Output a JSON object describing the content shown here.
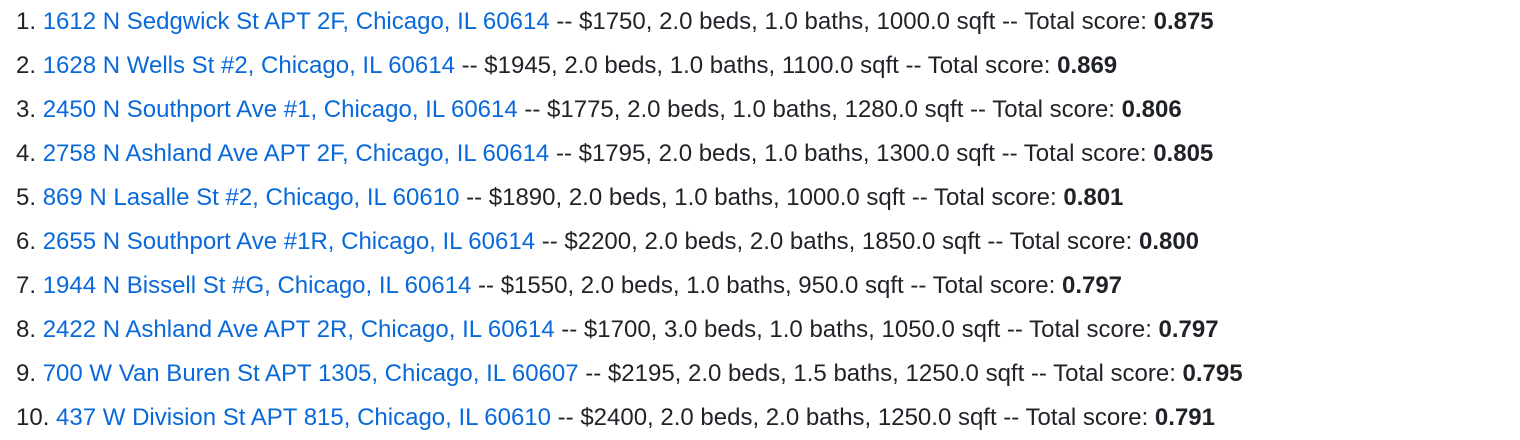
{
  "items": [
    {
      "number": "1.",
      "address": "1612 N Sedgwick St APT 2F, Chicago, IL 60614",
      "details": " -- $1750, 2.0 beds, 1.0 baths, 1000.0 sqft -- Total score: ",
      "score": "0.875"
    },
    {
      "number": "2.",
      "address": "1628 N Wells St #2, Chicago, IL 60614",
      "details": " -- $1945, 2.0 beds, 1.0 baths, 1100.0 sqft -- Total score: ",
      "score": "0.869"
    },
    {
      "number": "3.",
      "address": "2450 N Southport Ave #1, Chicago, IL 60614",
      "details": " -- $1775, 2.0 beds, 1.0 baths, 1280.0 sqft -- Total score: ",
      "score": "0.806"
    },
    {
      "number": "4.",
      "address": "2758 N Ashland Ave APT 2F, Chicago, IL 60614",
      "details": " -- $1795, 2.0 beds, 1.0 baths, 1300.0 sqft -- Total score: ",
      "score": "0.805"
    },
    {
      "number": "5.",
      "address": "869 N Lasalle St #2, Chicago, IL 60610",
      "details": " -- $1890, 2.0 beds, 1.0 baths, 1000.0 sqft -- Total score: ",
      "score": "0.801"
    },
    {
      "number": "6.",
      "address": "2655 N Southport Ave #1R, Chicago, IL 60614",
      "details": " -- $2200, 2.0 beds, 2.0 baths, 1850.0 sqft -- Total score: ",
      "score": "0.800"
    },
    {
      "number": "7.",
      "address": "1944 N Bissell St #G, Chicago, IL 60614",
      "details": " -- $1550, 2.0 beds, 1.0 baths, 950.0 sqft -- Total score: ",
      "score": "0.797"
    },
    {
      "number": "8.",
      "address": "2422 N Ashland Ave APT 2R, Chicago, IL 60614",
      "details": " -- $1700, 3.0 beds, 1.0 baths, 1050.0 sqft -- Total score: ",
      "score": "0.797"
    },
    {
      "number": "9.",
      "address": "700 W Van Buren St APT 1305, Chicago, IL 60607",
      "details": " -- $2195, 2.0 beds, 1.5 baths, 1250.0 sqft -- Total score: ",
      "score": "0.795"
    },
    {
      "number": "10.",
      "address": "437 W Division St APT 815, Chicago, IL 60610",
      "details": " -- $2400, 2.0 beds, 2.0 baths, 1250.0 sqft -- Total score: ",
      "score": "0.791"
    }
  ],
  "colors": {
    "link": "#0969da",
    "text": "#1f2328",
    "background": "#ffffff"
  }
}
